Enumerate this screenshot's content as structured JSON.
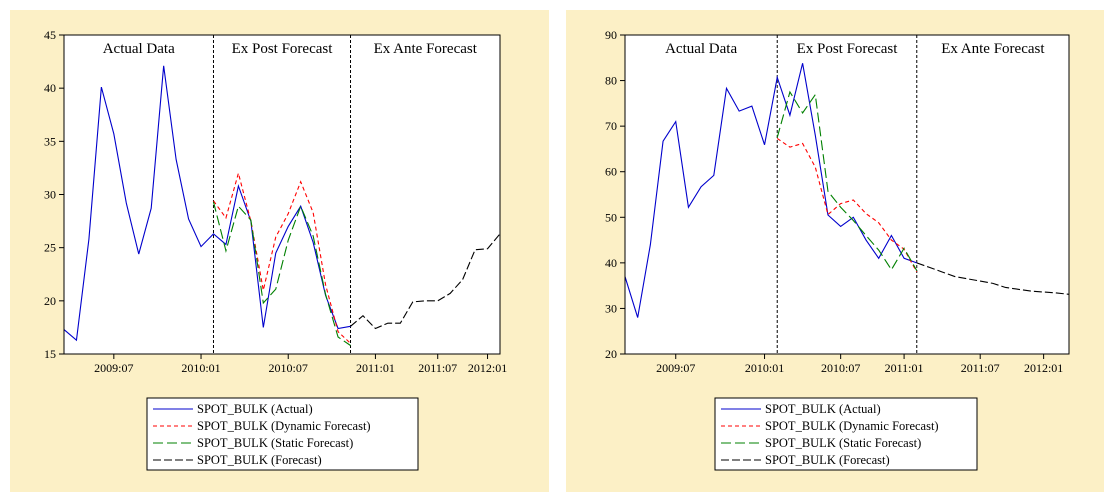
{
  "chart_data": [
    {
      "type": "line",
      "annotations": [
        "Actual Data",
        "Ex Post Forecast",
        "Ex Ante Forecast"
      ],
      "categories": [
        null,
        null,
        null,
        null,
        "2009:07",
        null,
        null,
        null,
        null,
        null,
        null,
        "2010:01",
        null,
        null,
        null,
        null,
        null,
        null,
        "2010:07",
        null,
        null,
        null,
        null,
        null,
        null,
        "2011:01",
        null,
        null,
        null,
        null,
        "2011:07",
        null,
        null,
        null,
        "2012:01",
        null
      ],
      "ylim": [
        15,
        45
      ],
      "yticks": [
        15,
        20,
        25,
        30,
        35,
        40,
        45
      ],
      "series": [
        {
          "name": "SPOT_BULK (Actual)",
          "color": "#0000cc",
          "dash": "none",
          "values": [
            17.3,
            16.3,
            25.8,
            40.1,
            35.7,
            29.2,
            24.4,
            28.7,
            42.1,
            33.3,
            27.7,
            25.1,
            26.3,
            25.3,
            30.8,
            27.5,
            17.5,
            24.5,
            27.0,
            28.9,
            25.5,
            20.5,
            17.4,
            17.6,
            null,
            null,
            null,
            null,
            null,
            null,
            null,
            null,
            null,
            null,
            null,
            null
          ]
        },
        {
          "name": "SPOT_BULK (Dynamic Forecast)",
          "color": "#ff0000",
          "dash": "4,3",
          "values": [
            null,
            null,
            null,
            null,
            null,
            null,
            null,
            null,
            null,
            null,
            null,
            null,
            29.4,
            27.8,
            32.0,
            27.5,
            21.0,
            26.0,
            28.2,
            31.2,
            28.3,
            21.5,
            17.1,
            16.0,
            null,
            null,
            null,
            null,
            null,
            null,
            null,
            null,
            null,
            null,
            null,
            null
          ]
        },
        {
          "name": "SPOT_BULK (Static Forecast)",
          "color": "#008000",
          "dash": "10,4",
          "values": [
            null,
            null,
            null,
            null,
            null,
            null,
            null,
            null,
            null,
            null,
            null,
            null,
            29.3,
            24.7,
            28.9,
            27.6,
            19.8,
            21.1,
            25.7,
            28.9,
            26.1,
            20.6,
            16.6,
            15.8,
            null,
            null,
            null,
            null,
            null,
            null,
            null,
            null,
            null,
            null,
            null,
            null
          ]
        },
        {
          "name": "SPOT_BULK (Forecast)",
          "color": "#000000",
          "dash": "8,3",
          "values": [
            null,
            null,
            null,
            null,
            null,
            null,
            null,
            null,
            null,
            null,
            null,
            null,
            null,
            null,
            null,
            null,
            null,
            null,
            null,
            null,
            null,
            null,
            null,
            17.6,
            18.6,
            17.4,
            17.9,
            17.9,
            19.9,
            20.0,
            20.0,
            20.7,
            22.0,
            24.8,
            24.9,
            26.3
          ]
        }
      ]
    },
    {
      "type": "line",
      "annotations": [
        "Actual Data",
        "Ex Post Forecast",
        "Ex Ante Forecast"
      ],
      "categories": [
        null,
        null,
        null,
        null,
        "2009:07",
        null,
        null,
        null,
        null,
        null,
        null,
        "2010:01",
        null,
        null,
        null,
        null,
        null,
        "2010:07",
        null,
        null,
        null,
        null,
        "2011:01",
        null,
        null,
        null,
        null,
        null,
        "2011:07",
        null,
        null,
        null,
        null,
        "2012:01",
        null,
        null
      ],
      "ylim": [
        20,
        90
      ],
      "yticks": [
        20,
        30,
        40,
        50,
        60,
        70,
        80,
        90
      ],
      "series": [
        {
          "name": "SPOT_BULK (Actual)",
          "color": "#0000cc",
          "dash": "none",
          "values": [
            37,
            28,
            44,
            66.7,
            71,
            52.2,
            56.7,
            59.2,
            78.3,
            73.3,
            74.4,
            65.9,
            80.7,
            72.4,
            83.8,
            68,
            50.5,
            48,
            50,
            45,
            41,
            46,
            41,
            40,
            null,
            null,
            null,
            null,
            null,
            null,
            null,
            null,
            null,
            null,
            null,
            null
          ]
        },
        {
          "name": "SPOT_BULK (Dynamic Forecast)",
          "color": "#ff0000",
          "dash": "4,3",
          "values": [
            null,
            null,
            null,
            null,
            null,
            null,
            null,
            null,
            null,
            null,
            null,
            null,
            67.3,
            65.4,
            66.2,
            61,
            50.6,
            53,
            53.8,
            50.8,
            48.8,
            45,
            43,
            38,
            null,
            null,
            null,
            null,
            null,
            null,
            null,
            null,
            null,
            null,
            null,
            null
          ]
        },
        {
          "name": "SPOT_BULK (Static Forecast)",
          "color": "#008000",
          "dash": "10,4",
          "values": [
            null,
            null,
            null,
            null,
            null,
            null,
            null,
            null,
            null,
            null,
            null,
            null,
            67.5,
            77.5,
            72.9,
            76.9,
            55.7,
            52.2,
            49.3,
            46,
            42.8,
            38.5,
            43.2,
            38.3,
            null,
            null,
            null,
            null,
            null,
            null,
            null,
            null,
            null,
            null,
            null,
            null
          ]
        },
        {
          "name": "SPOT_BULK (Forecast)",
          "color": "#000000",
          "dash": "8,3",
          "values": [
            null,
            null,
            null,
            null,
            null,
            null,
            null,
            null,
            null,
            null,
            null,
            null,
            null,
            null,
            null,
            null,
            null,
            null,
            null,
            null,
            null,
            null,
            null,
            40,
            39,
            38,
            37,
            36.5,
            36,
            35.5,
            34.6,
            34.2,
            33.8,
            33.6,
            33.4,
            33.1
          ]
        }
      ]
    }
  ]
}
